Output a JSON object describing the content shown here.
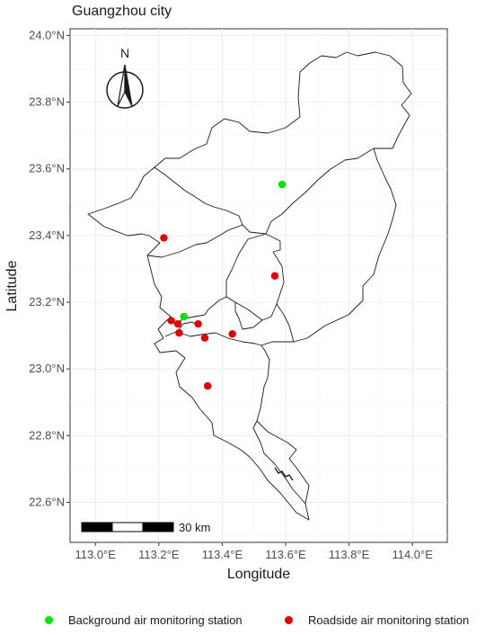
{
  "map": {
    "title": "Guangzhou city",
    "xlabel": "Longitude",
    "ylabel": "Latitude",
    "north_label": "N",
    "scale_label": "30 km",
    "x_ticks": [
      "113.0°E",
      "113.2°E",
      "113.4°E",
      "113.6°E",
      "113.8°E",
      "114.0°E"
    ],
    "y_ticks": [
      "24.0°N",
      "23.8°N",
      "23.6°N",
      "23.4°N",
      "23.2°N",
      "23.0°N",
      "22.8°N",
      "22.6°N"
    ],
    "xlim": [
      112.92,
      114.11
    ],
    "ylim": [
      22.48,
      24.02
    ],
    "grid": true
  },
  "legend": {
    "background_label": "Background air monitoring station",
    "roadside_label": "Roadside air monitoring station",
    "background_color": "#00e600",
    "roadside_color": "#e60000"
  },
  "chart_data": {
    "type": "scatter",
    "xlabel": "Longitude",
    "ylabel": "Latitude",
    "series": [
      {
        "name": "Background air monitoring station",
        "color": "#00e600",
        "points": [
          {
            "x": 113.589,
            "y": 23.553
          },
          {
            "x": 113.279,
            "y": 23.157
          }
        ]
      },
      {
        "name": "Roadside air monitoring station",
        "color": "#e60000",
        "points": [
          {
            "x": 113.216,
            "y": 23.393
          },
          {
            "x": 113.566,
            "y": 23.279
          },
          {
            "x": 113.239,
            "y": 23.145
          },
          {
            "x": 113.26,
            "y": 23.135
          },
          {
            "x": 113.324,
            "y": 23.135
          },
          {
            "x": 113.264,
            "y": 23.108
          },
          {
            "x": 113.345,
            "y": 23.093
          },
          {
            "x": 113.432,
            "y": 23.105
          },
          {
            "x": 113.354,
            "y": 22.949
          }
        ]
      }
    ]
  }
}
